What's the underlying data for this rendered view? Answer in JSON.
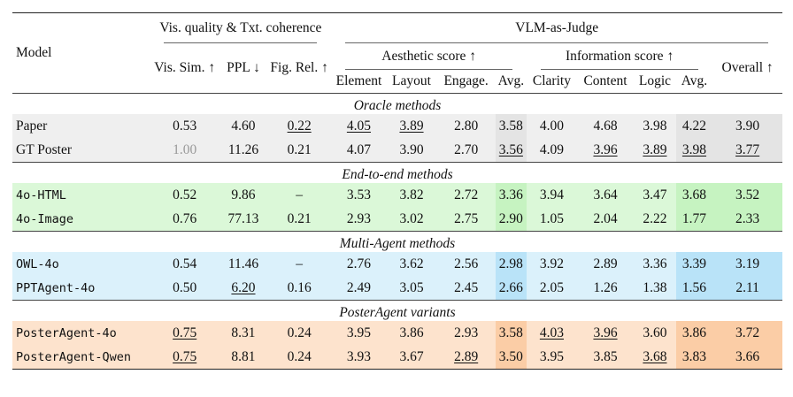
{
  "header": {
    "model": "Model",
    "group_vis": "Vis. quality & Txt. coherence",
    "group_vlm": "VLM-as-Judge",
    "aesthetic": "Aesthetic score ↑",
    "information": "Information score ↑",
    "vis_sim": "Vis. Sim. ↑",
    "ppl": "PPL ↓",
    "fig_rel": "Fig. Rel. ↑",
    "element": "Element",
    "layout": "Layout",
    "engage": "Engage.",
    "avg": "Avg.",
    "clarity": "Clarity",
    "content": "Content",
    "logic": "Logic",
    "overall": "Overall ↑"
  },
  "sections": [
    {
      "title": "Oracle methods",
      "rows": [
        {
          "model": "Paper",
          "vis_sim": "0.53",
          "ppl": "4.60",
          "fig_rel": "0.22",
          "element": "4.05",
          "layout": "3.89",
          "engage": "2.80",
          "aes_avg": "3.58",
          "clarity": "4.00",
          "content": "4.68",
          "logic": "3.98",
          "info_avg": "4.22",
          "overall": "3.90"
        },
        {
          "model": "GT Poster",
          "vis_sim": "1.00",
          "ppl": "11.26",
          "fig_rel": "0.21",
          "element": "4.07",
          "layout": "3.90",
          "engage": "2.70",
          "aes_avg": "3.56",
          "clarity": "4.09",
          "content": "3.96",
          "logic": "3.89",
          "info_avg": "3.98",
          "overall": "3.77"
        }
      ]
    },
    {
      "title": "End-to-end methods",
      "rows": [
        {
          "model": "4o-HTML",
          "vis_sim": "0.52",
          "ppl": "9.86",
          "fig_rel": "–",
          "element": "3.53",
          "layout": "3.82",
          "engage": "2.72",
          "aes_avg": "3.36",
          "clarity": "3.94",
          "content": "3.64",
          "logic": "3.47",
          "info_avg": "3.68",
          "overall": "3.52"
        },
        {
          "model": "4o-Image",
          "vis_sim": "0.76",
          "ppl": "77.13",
          "fig_rel": "0.21",
          "element": "2.93",
          "layout": "3.02",
          "engage": "2.75",
          "aes_avg": "2.90",
          "clarity": "1.05",
          "content": "2.04",
          "logic": "2.22",
          "info_avg": "1.77",
          "overall": "2.33"
        }
      ]
    },
    {
      "title": "Multi-Agent methods",
      "rows": [
        {
          "model": "OWL-4o",
          "vis_sim": "0.54",
          "ppl": "11.46",
          "fig_rel": "–",
          "element": "2.76",
          "layout": "3.62",
          "engage": "2.56",
          "aes_avg": "2.98",
          "clarity": "3.92",
          "content": "2.89",
          "logic": "3.36",
          "info_avg": "3.39",
          "overall": "3.19"
        },
        {
          "model": "PPTAgent-4o",
          "vis_sim": "0.50",
          "ppl": "6.20",
          "fig_rel": "0.16",
          "element": "2.49",
          "layout": "3.05",
          "engage": "2.45",
          "aes_avg": "2.66",
          "clarity": "2.05",
          "content": "1.26",
          "logic": "1.38",
          "info_avg": "1.56",
          "overall": "2.11"
        }
      ]
    },
    {
      "title": "PosterAgent variants",
      "rows": [
        {
          "model": "PosterAgent-4o",
          "vis_sim": "0.75",
          "ppl": "8.31",
          "fig_rel": "0.24",
          "element": "3.95",
          "layout": "3.86",
          "engage": "2.93",
          "aes_avg": "3.58",
          "clarity": "4.03",
          "content": "3.96",
          "logic": "3.60",
          "info_avg": "3.86",
          "overall": "3.72"
        },
        {
          "model": "PosterAgent-Qwen",
          "vis_sim": "0.75",
          "ppl": "8.81",
          "fig_rel": "0.24",
          "element": "3.93",
          "layout": "3.67",
          "engage": "2.89",
          "aes_avg": "3.50",
          "clarity": "3.95",
          "content": "3.85",
          "logic": "3.68",
          "info_avg": "3.83",
          "overall": "3.66"
        }
      ]
    }
  ]
}
